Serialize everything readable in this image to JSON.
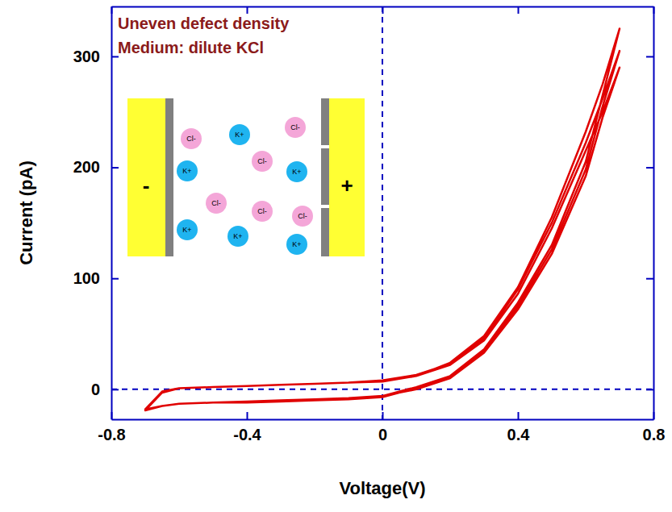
{
  "chart_data": {
    "type": "line",
    "annotations": [
      "Uneven defect density",
      "Medium: dilute KCl"
    ],
    "x_label": "Voltage(V)",
    "y_label": "Current (pA)",
    "color": "#e00000",
    "xlim": [
      -0.8,
      0.8
    ],
    "xticks": [
      -0.8,
      -0.4,
      0,
      0.4,
      0.8
    ],
    "ylim": [
      -27,
      345
    ],
    "yticks": [
      0,
      100,
      200,
      300
    ],
    "ref_lines": {
      "x": 0,
      "y": 0
    },
    "inset": {
      "electrodes": [
        "-",
        "+"
      ],
      "ions": [
        "K+",
        "Cl-"
      ]
    },
    "x": [
      0,
      0.1,
      0.2,
      0.3,
      0.4,
      0.5,
      0.6,
      0.65,
      0.7,
      0.65,
      0.6,
      0.5,
      0.4,
      0.3,
      0.2,
      0.1,
      0,
      -0.1,
      -0.2,
      -0.3,
      -0.4,
      -0.5,
      -0.6,
      -0.65,
      -0.7,
      -0.65,
      -0.6,
      -0.5,
      -0.4,
      -0.3,
      -0.2,
      -0.1,
      0,
      0.1,
      0.2,
      0.3,
      0.4,
      0.5,
      0.6,
      0.65,
      0.7,
      0.65,
      0.6,
      0.5,
      0.4,
      0.3,
      0.2,
      0.1,
      0,
      -0.1,
      -0.2,
      -0.3,
      -0.4,
      -0.5,
      -0.6,
      -0.65,
      -0.7,
      -0.65,
      -0.6,
      -0.5,
      -0.4,
      -0.3,
      -0.2,
      -0.1,
      0,
      0.1,
      0.2,
      0.3,
      0.4,
      0.5,
      0.6,
      0.65,
      0.7,
      0.65,
      0.6,
      0.5,
      0.4,
      0.3,
      0.2,
      0.1,
      0
    ],
    "values": [
      7,
      12,
      24,
      48,
      92,
      155,
      232,
      275,
      325,
      265,
      205,
      130,
      78,
      36,
      12,
      2,
      -6,
      -8,
      -9,
      -10,
      -11,
      -12,
      -13,
      -15,
      -19,
      -3,
      1,
      2,
      3,
      4,
      5,
      6,
      8,
      13,
      23,
      46,
      90,
      150,
      222,
      262,
      305,
      255,
      198,
      126,
      75,
      34,
      11,
      1,
      -7,
      -9,
      -10,
      -11,
      -12,
      -12,
      -13,
      -15,
      -18,
      -2,
      1,
      2,
      3,
      4,
      5,
      6,
      7,
      12,
      22,
      44,
      86,
      145,
      215,
      250,
      290,
      245,
      192,
      122,
      72,
      33,
      10,
      0,
      -6
    ]
  }
}
